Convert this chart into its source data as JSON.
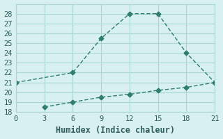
{
  "line1_x": [
    0,
    6,
    9,
    12,
    15,
    18,
    21
  ],
  "line1_y": [
    21,
    22,
    25.5,
    28,
    28,
    24,
    21
  ],
  "line2_x": [
    3,
    6,
    9,
    12,
    15,
    18,
    21
  ],
  "line2_y": [
    18.5,
    19,
    19.5,
    19.8,
    20.2,
    20.5,
    21
  ],
  "line_color": "#2e7d6e",
  "bg_color": "#d8f0ef",
  "grid_color": "#a8d8d4",
  "xlabel": "Humidex (Indice chaleur)",
  "xlim": [
    0,
    21
  ],
  "ylim": [
    18,
    29
  ],
  "xticks": [
    0,
    3,
    6,
    9,
    12,
    15,
    18,
    21
  ],
  "yticks": [
    18,
    19,
    20,
    21,
    22,
    23,
    24,
    25,
    26,
    27,
    28
  ],
  "font_color": "#2e5c5c",
  "label_fontsize": 8.5,
  "tick_fontsize": 7.5
}
